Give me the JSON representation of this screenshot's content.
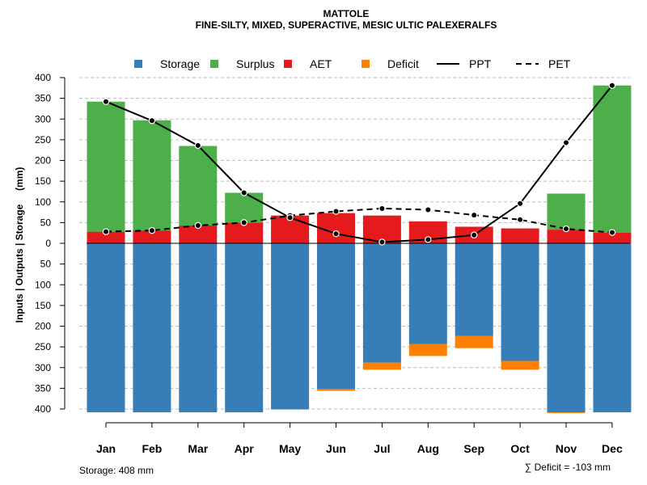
{
  "chart_data": {
    "type": "bar",
    "title": "MATTOLE",
    "subtitle": "FINE-SILTY, MIXED, SUPERACTIVE, MESIC ULTIC PALEXERALFS",
    "ylabel": "Inputs | Outputs | Storage     (mm)",
    "ylim": [
      -410,
      400
    ],
    "yticks": [
      400,
      350,
      300,
      250,
      200,
      150,
      100,
      50,
      0,
      -50,
      -100,
      -150,
      -200,
      -250,
      -300,
      -350,
      -400
    ],
    "ytick_labels": [
      "400",
      "350",
      "300",
      "250",
      "200",
      "150",
      "100",
      "50",
      "0",
      "50",
      "100",
      "150",
      "200",
      "250",
      "300",
      "350",
      "400"
    ],
    "categories": [
      "Jan",
      "Feb",
      "Mar",
      "Apr",
      "May",
      "Jun",
      "Jul",
      "Aug",
      "Sep",
      "Oct",
      "Nov",
      "Dec"
    ],
    "legend": [
      {
        "name": "Storage",
        "kind": "square",
        "color": "#377EB8"
      },
      {
        "name": "Surplus",
        "kind": "square",
        "color": "#4DAF4A"
      },
      {
        "name": "AET",
        "kind": "square",
        "color": "#E41A1C"
      },
      {
        "name": "Deficit",
        "kind": "square",
        "color": "#FF7F00"
      },
      {
        "name": "PPT",
        "kind": "line",
        "color": "#000000"
      },
      {
        "name": "PET",
        "kind": "dash",
        "color": "#000000"
      }
    ],
    "series": [
      {
        "name": "AET",
        "color": "#E41A1C",
        "values": [
          28,
          31,
          43,
          50,
          67,
          73,
          67,
          53,
          40,
          36,
          33,
          26
        ]
      },
      {
        "name": "Surplus",
        "color": "#4DAF4A",
        "values": [
          314,
          266,
          192,
          72,
          0,
          0,
          0,
          0,
          0,
          0,
          87,
          355
        ]
      },
      {
        "name": "Storage",
        "color": "#377EB8",
        "values": [
          408,
          408,
          408,
          408,
          401,
          352,
          288,
          243,
          224,
          284,
          408,
          408
        ]
      },
      {
        "name": "Deficit",
        "color": "#FF7F00",
        "values": [
          0,
          0,
          0,
          0,
          0,
          4,
          17,
          29,
          29,
          21,
          2,
          0
        ]
      },
      {
        "name": "PPT",
        "color": "#000000",
        "values": [
          342,
          296,
          236,
          122,
          62,
          23,
          3,
          9,
          20,
          96,
          243,
          381
        ]
      },
      {
        "name": "PET",
        "color": "#000000",
        "values": [
          28,
          31,
          43,
          50,
          67,
          77,
          84,
          81,
          68,
          57,
          35,
          26
        ]
      }
    ],
    "grid": true
  },
  "footer": {
    "storage_text": "Storage: 408 mm",
    "deficit_text": "∑ Deficit = -103 mm"
  }
}
